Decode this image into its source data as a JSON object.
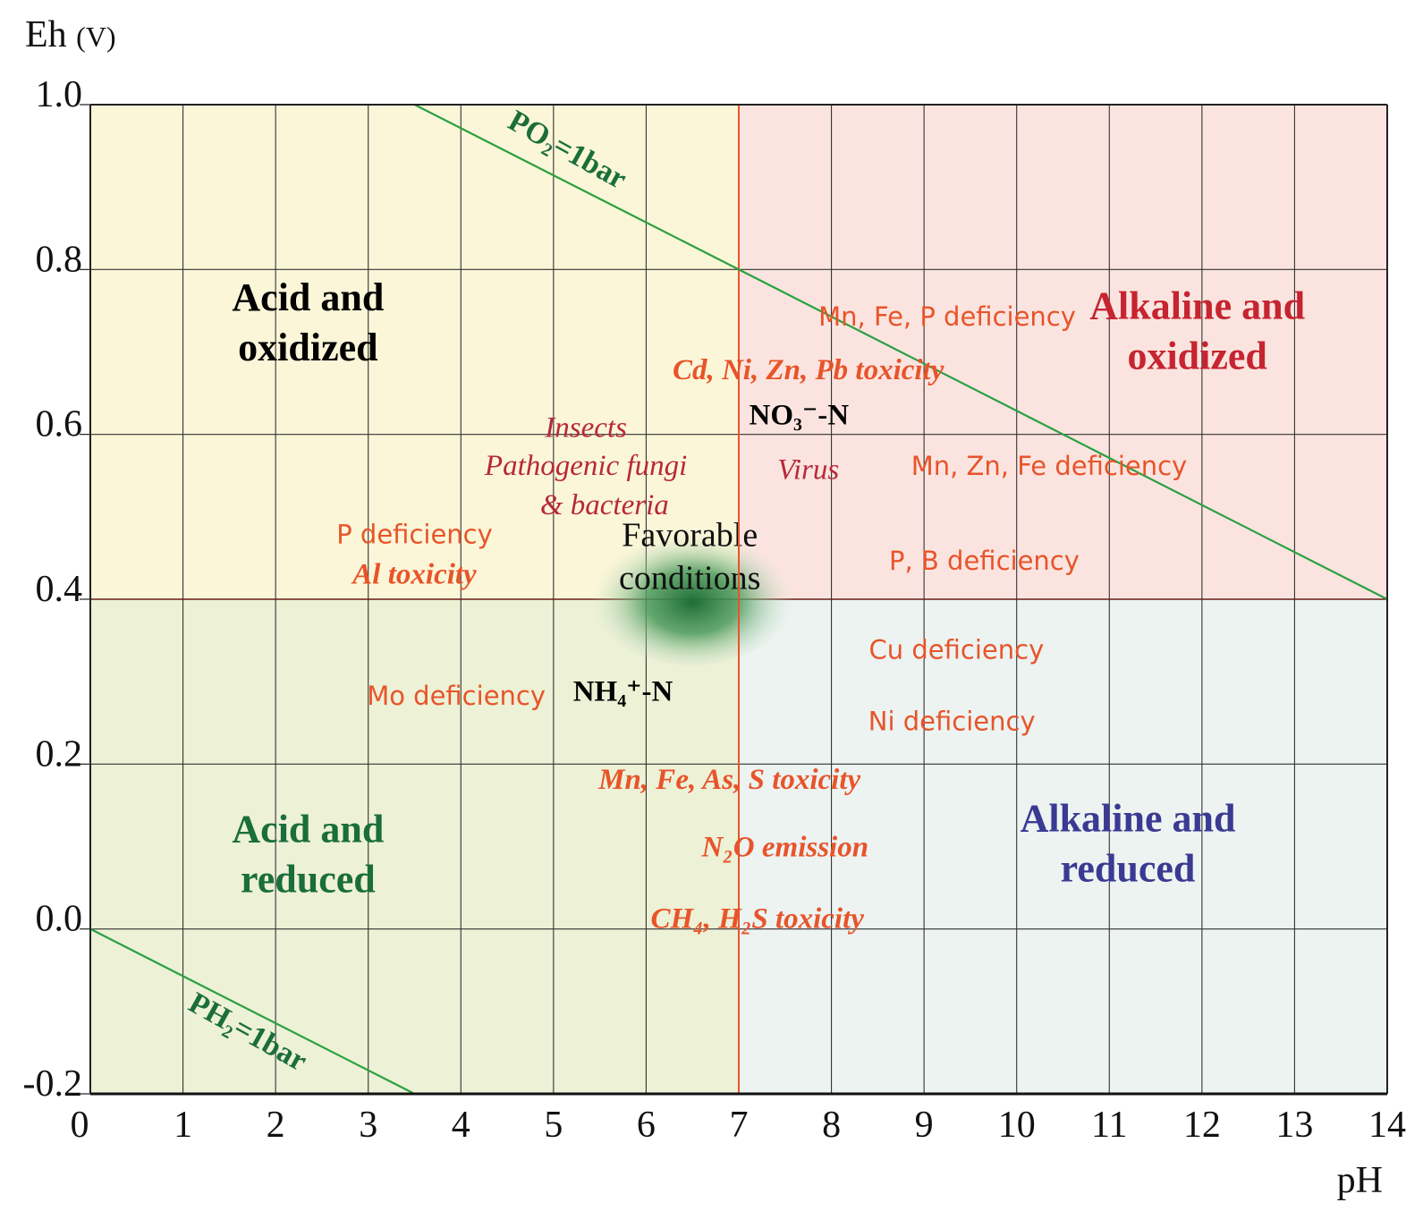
{
  "chart_data": {
    "type": "area",
    "title": "",
    "xlabel": "pH",
    "ylabel": "Eh",
    "ylabel_unit": "(V)",
    "xlim": [
      0,
      14
    ],
    "ylim": [
      -0.2,
      1.0
    ],
    "x_ticks": [
      0,
      1,
      2,
      3,
      4,
      5,
      6,
      7,
      8,
      9,
      10,
      11,
      12,
      13,
      14
    ],
    "y_ticks": [
      "-0.2",
      "0.0",
      "0.2",
      "0.4",
      "0.6",
      "0.8",
      "1.0"
    ],
    "grid": true,
    "regions": [
      {
        "name": "Acid and oxidized",
        "lines": [
          "Acid and",
          "oxidized"
        ],
        "x": [
          0,
          7
        ],
        "y": [
          0.4,
          1.0
        ],
        "fill": "#fbf6d8",
        "label_color": "#000000",
        "label_at": [
          2.35,
          0.72
        ]
      },
      {
        "name": "Alkaline and oxidized",
        "lines": [
          "Alkaline and",
          "oxidized"
        ],
        "x": [
          7,
          14
        ],
        "y": [
          0.4,
          1.0
        ],
        "fill": "#fbe4df",
        "label_color": "#c62430",
        "label_at": [
          11.95,
          0.71
        ]
      },
      {
        "name": "Acid and reduced",
        "lines": [
          "Acid and",
          "reduced"
        ],
        "x": [
          0,
          7
        ],
        "y": [
          -0.2,
          0.4
        ],
        "fill": "#edf1d6",
        "label_color": "#1a6e3a",
        "label_at": [
          2.35,
          0.075
        ]
      },
      {
        "name": "Alkaline and reduced",
        "lines": [
          "Alkaline and",
          "reduced"
        ],
        "x": [
          7,
          14
        ],
        "y": [
          -0.2,
          0.4
        ],
        "fill": "#ecf3f1",
        "label_color": "#3a3a92",
        "label_at": [
          11.2,
          0.088
        ]
      }
    ],
    "lines": [
      {
        "name": "PO2=1bar",
        "label": "PO₂=1bar",
        "points": [
          [
            3.5,
            1.0
          ],
          [
            14,
            0.4
          ]
        ],
        "color": "#2aa043",
        "label_at": [
          5.1,
          0.935
        ],
        "label_angle": 29
      },
      {
        "name": "PH2=1bar",
        "label": "PH₂=1bar",
        "points": [
          [
            0,
            0.0
          ],
          [
            3.5,
            -0.2
          ]
        ],
        "color": "#2aa043",
        "label_at": [
          1.65,
          -0.135
        ],
        "label_angle": 29
      }
    ],
    "divider_color": "#e8542a",
    "favorable_zone": {
      "label_lines": [
        "Favorable",
        "conditions"
      ],
      "center": [
        6.5,
        0.405
      ],
      "rx": 1.1,
      "ry": 0.085
    },
    "annotations": [
      {
        "text": "Mn, Fe, P deficiency",
        "x": 9.25,
        "y": 0.732,
        "style": "sans",
        "color": "#e8542a"
      },
      {
        "text": "Cd, Ni, Zn, Pb toxicity",
        "x": 7.75,
        "y": 0.667,
        "style": "serif-bold-italic",
        "color": "#e8542a"
      },
      {
        "text": "NO₃⁻-N",
        "x": 7.65,
        "y": 0.612,
        "style": "serif-bold",
        "color": "#000000"
      },
      {
        "text": "Insects",
        "x": 5.35,
        "y": 0.597,
        "style": "serif-italic",
        "color": "#b8283a"
      },
      {
        "text": "Pathogenic fungi",
        "x": 5.35,
        "y": 0.551,
        "style": "serif-italic",
        "color": "#b8283a"
      },
      {
        "text": "& bacteria",
        "x": 5.55,
        "y": 0.503,
        "style": "serif-italic",
        "color": "#b8283a"
      },
      {
        "text": "Virus",
        "x": 7.75,
        "y": 0.546,
        "style": "serif-italic",
        "color": "#b8283a"
      },
      {
        "text": "Mn, Zn, Fe deficiency",
        "x": 10.35,
        "y": 0.551,
        "style": "sans",
        "color": "#e8542a"
      },
      {
        "text": "P deficiency",
        "x": 3.5,
        "y": 0.468,
        "style": "sans",
        "color": "#e8542a"
      },
      {
        "text": "Al toxicity",
        "x": 3.5,
        "y": 0.419,
        "style": "serif-bold-italic",
        "color": "#e8542a"
      },
      {
        "text": "P, B deficiency",
        "x": 9.65,
        "y": 0.436,
        "style": "sans",
        "color": "#e8542a"
      },
      {
        "text": "Cu deficiency",
        "x": 9.35,
        "y": 0.328,
        "style": "sans",
        "color": "#e8542a"
      },
      {
        "text": "Mo deficiency",
        "x": 3.95,
        "y": 0.272,
        "style": "sans",
        "color": "#e8542a"
      },
      {
        "text": "NH₄⁺-N",
        "x": 5.75,
        "y": 0.277,
        "style": "serif-bold",
        "color": "#000000"
      },
      {
        "text": "Ni deficiency",
        "x": 9.3,
        "y": 0.241,
        "style": "sans",
        "color": "#e8542a"
      },
      {
        "text": "Mn, Fe, As, S toxicity",
        "x": 6.9,
        "y": 0.17,
        "style": "serif-bold-italic",
        "color": "#e8542a"
      },
      {
        "text": "N₂O emission",
        "x": 7.5,
        "y": 0.088,
        "style": "serif-bold-italic",
        "color": "#e8542a"
      },
      {
        "text": "CH₄, H₂S toxicity",
        "x": 7.2,
        "y": 0.001,
        "style": "serif-bold-italic",
        "color": "#e8542a"
      }
    ]
  }
}
